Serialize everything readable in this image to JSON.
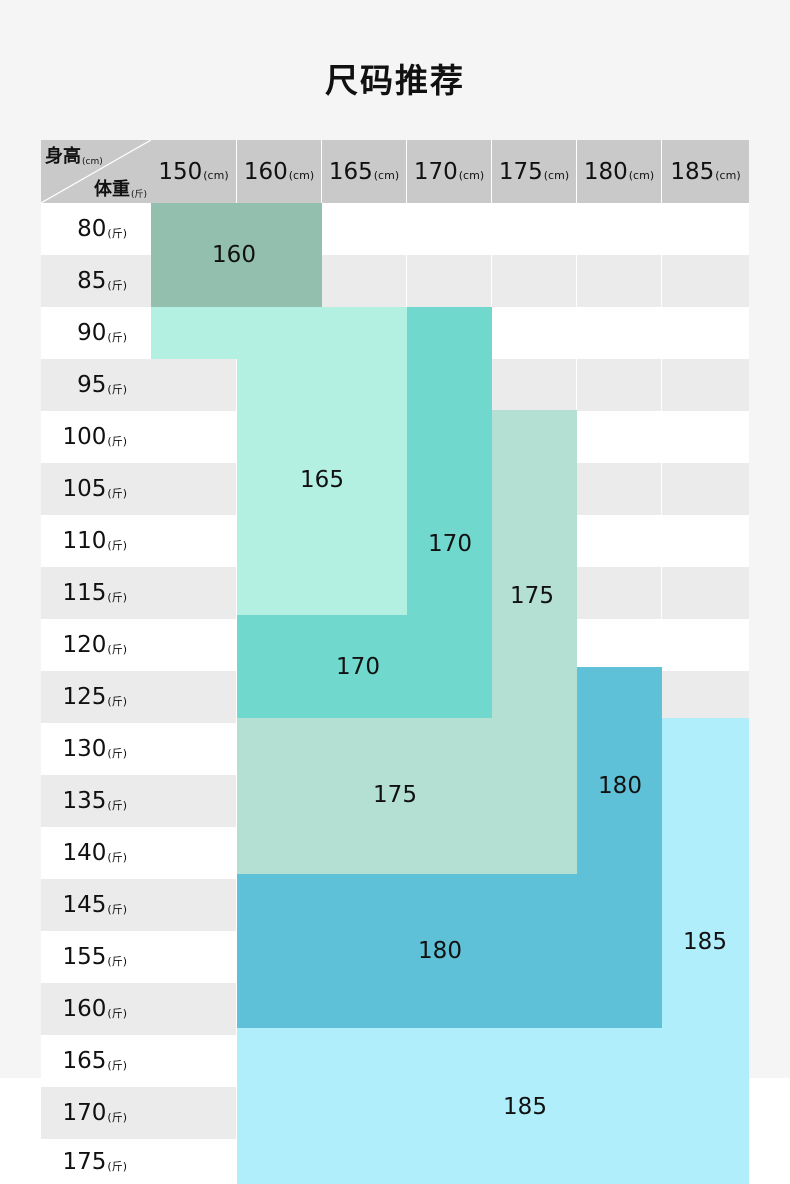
{
  "title": "尺码推荐",
  "corner": {
    "height_label": "身高",
    "height_unit": "(cm)",
    "weight_label": "体重",
    "weight_unit": "(斤)"
  },
  "height_unit": "(cm)",
  "weight_unit": "(斤)",
  "heights": [
    "150",
    "160",
    "165",
    "170",
    "175",
    "180",
    "185"
  ],
  "weights": [
    "80",
    "85",
    "90",
    "95",
    "100",
    "105",
    "110",
    "115",
    "120",
    "125",
    "130",
    "135",
    "140",
    "145",
    "155",
    "160",
    "165",
    "170",
    "175"
  ],
  "colors": {
    "size_160": "#93bfae",
    "size_165": "#b3f0e2",
    "size_170": "#71d8ce",
    "size_175": "#b4e0d4",
    "size_180": "#5fc1d8",
    "size_185": "#b0eefb",
    "header": "#c9c9c9",
    "row_grey": "#ebebeb",
    "row_white": "#ffffff"
  },
  "size_regions": [
    {
      "size": "160",
      "color_key": "size_160",
      "label": "160"
    },
    {
      "size": "165",
      "color_key": "size_165",
      "label": "165"
    },
    {
      "size": "170",
      "color_key": "size_170",
      "label_vertical": "170",
      "label_horizontal": "170"
    },
    {
      "size": "175",
      "color_key": "size_175",
      "label_vertical": "175",
      "label_horizontal": "175"
    },
    {
      "size": "180",
      "color_key": "size_180",
      "label_vertical": "180",
      "label_horizontal": "180"
    },
    {
      "size": "185",
      "color_key": "size_185",
      "label_vertical": "185",
      "label_horizontal": "185"
    }
  ]
}
